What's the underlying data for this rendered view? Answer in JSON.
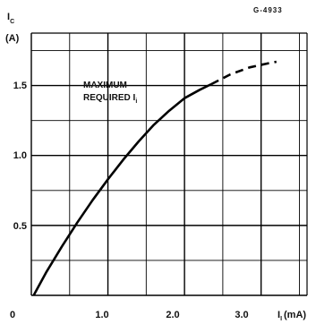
{
  "chart_data": {
    "type": "line",
    "figure_id": "G-4933",
    "ylabel_symbol": "I",
    "ylabel_sub": "C",
    "ylabel_unit": "(A)",
    "xlabel_symbol": "I",
    "xlabel_sub": "I",
    "xlabel_unit": "(mA)",
    "x_range": [
      0,
      3.6
    ],
    "y_range": [
      0,
      1.875
    ],
    "x_ticks": [
      "0",
      "1.0",
      "2.0",
      "3.0"
    ],
    "y_ticks": [
      "0.5",
      "1.0",
      "1.5"
    ],
    "grid": true,
    "annotation_line1": "MAXIMUM",
    "annotation_line2": "REQUIRED I",
    "annotation_sub": "i",
    "series": [
      {
        "style": "solid",
        "x": [
          0.03,
          0.2,
          0.4,
          0.6,
          0.8,
          1.0,
          1.2,
          1.4,
          1.6,
          1.8,
          2.0,
          2.2,
          2.35
        ],
        "y": [
          0.0,
          0.17,
          0.35,
          0.52,
          0.68,
          0.83,
          0.97,
          1.1,
          1.22,
          1.32,
          1.41,
          1.47,
          1.51
        ]
      },
      {
        "style": "dashed",
        "x": [
          2.35,
          2.6,
          2.85,
          3.1,
          3.2
        ],
        "y": [
          1.51,
          1.58,
          1.63,
          1.66,
          1.67
        ]
      }
    ]
  }
}
